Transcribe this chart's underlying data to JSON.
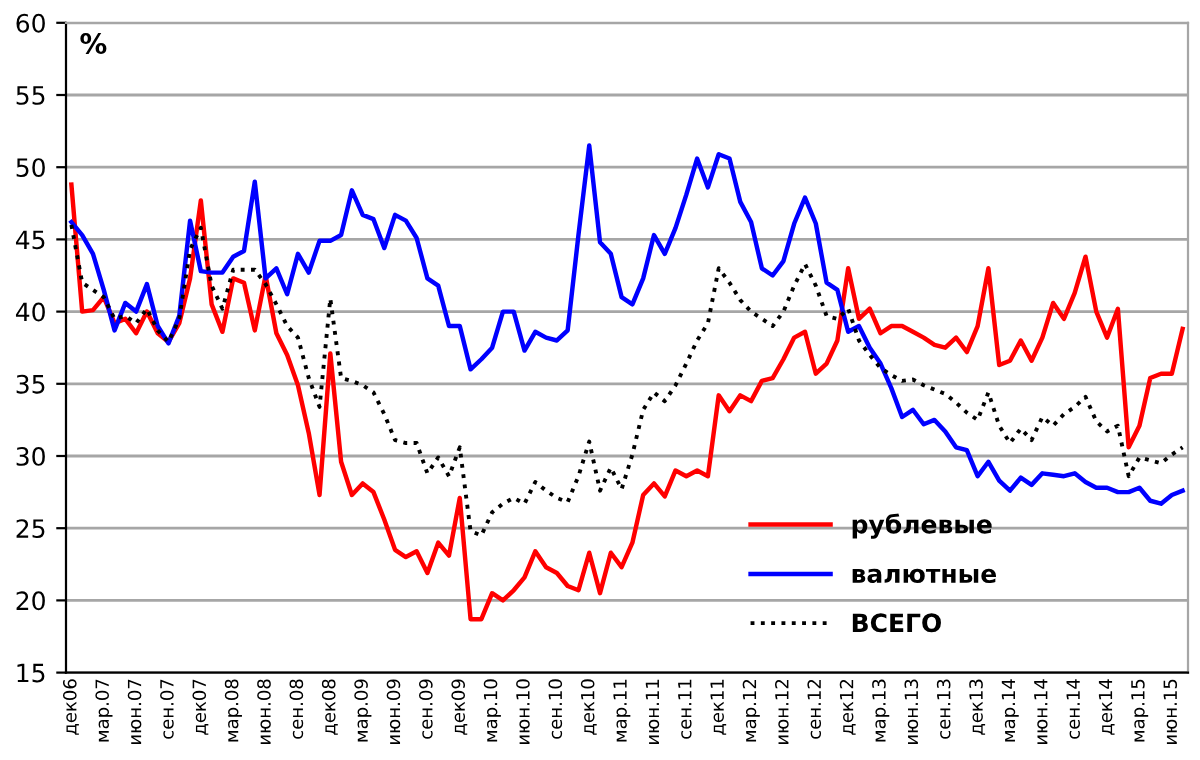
{
  "chart_data": {
    "type": "line",
    "ylabel": "%",
    "categories": [
      "дек06",
      null,
      null,
      "мар.07",
      null,
      null,
      "июн.07",
      null,
      null,
      "сен.07",
      null,
      null,
      "дек07",
      null,
      null,
      "мар.08",
      null,
      null,
      "июн.08",
      null,
      null,
      "сен.08",
      null,
      null,
      "дек08",
      null,
      null,
      "мар.09",
      null,
      null,
      "июн.09",
      null,
      null,
      "сен.09",
      null,
      null,
      "дек09",
      null,
      null,
      "мар.10",
      null,
      null,
      "июн.10",
      null,
      null,
      "сен.10",
      null,
      null,
      "дек10",
      null,
      null,
      "мар.11",
      null,
      null,
      "июн.11",
      null,
      null,
      "сен.11",
      null,
      null,
      "дек11",
      null,
      null,
      "мар.12",
      null,
      null,
      "июн.12",
      null,
      null,
      "сен.12",
      null,
      null,
      "дек12",
      null,
      null,
      "мар.13",
      null,
      null,
      "июн.13",
      null,
      null,
      "сен.13",
      null,
      null,
      "дек13",
      null,
      null,
      "мар.14",
      null,
      null,
      "июн.14",
      null,
      null,
      "сен.14",
      null,
      null,
      "дек14",
      null,
      null,
      "мар.15",
      null,
      null,
      "июн.15",
      null
    ],
    "series": [
      {
        "name": "рублевые",
        "color": "#ff0000",
        "line_style": "solid",
        "values": [
          48.8,
          40.0,
          40.1,
          41.0,
          39.2,
          39.5,
          38.5,
          40.0,
          38.5,
          37.9,
          39.2,
          42.3,
          47.7,
          40.5,
          38.6,
          42.3,
          42.0,
          38.7,
          42.5,
          38.5,
          37.0,
          34.9,
          31.6,
          27.3,
          37.1,
          29.6,
          27.3,
          28.1,
          27.5,
          25.6,
          23.5,
          23.0,
          23.4,
          21.9,
          24.0,
          23.1,
          27.1,
          18.7,
          18.7,
          20.5,
          20.0,
          20.7,
          21.6,
          23.4,
          22.3,
          21.9,
          21.0,
          20.7,
          23.3,
          20.5,
          23.3,
          22.3,
          24.0,
          27.3,
          28.1,
          27.2,
          29.0,
          28.6,
          29.0,
          28.6,
          34.2,
          33.1,
          34.2,
          33.8,
          35.2,
          35.4,
          36.7,
          38.2,
          38.6,
          35.7,
          36.4,
          38.0,
          43.0,
          39.5,
          40.2,
          38.5,
          39.0,
          39.0,
          38.6,
          38.2,
          37.7,
          37.5,
          38.2,
          37.2,
          39.0,
          43.0,
          36.3,
          36.6,
          38.0,
          36.6,
          38.2,
          40.6,
          39.5,
          41.3,
          43.8,
          40.0,
          38.2,
          40.2,
          30.6,
          32.1,
          35.4,
          35.7,
          35.7,
          38.8
        ]
      },
      {
        "name": "валютные",
        "color": "#0000ff",
        "line_style": "solid",
        "values": [
          46.2,
          45.3,
          44.0,
          41.5,
          38.7,
          40.6,
          40.0,
          41.9,
          39.0,
          37.8,
          39.7,
          46.3,
          42.8,
          42.7,
          42.7,
          43.8,
          44.2,
          49.0,
          42.3,
          43.0,
          41.2,
          44.0,
          42.7,
          44.9,
          44.9,
          45.3,
          48.4,
          46.7,
          46.4,
          44.4,
          46.7,
          46.3,
          45.1,
          42.3,
          41.8,
          39.0,
          39.0,
          36.0,
          36.7,
          37.5,
          40.0,
          40.0,
          37.3,
          38.6,
          38.2,
          38.0,
          38.7,
          45.3,
          51.5,
          44.8,
          44.0,
          41.0,
          40.5,
          42.3,
          45.3,
          44.0,
          45.8,
          48.1,
          50.6,
          48.6,
          50.9,
          50.6,
          47.6,
          46.2,
          43.0,
          42.5,
          43.5,
          46.1,
          47.9,
          46.1,
          42.0,
          41.5,
          38.6,
          39.0,
          37.5,
          36.4,
          34.7,
          32.7,
          33.2,
          32.2,
          32.5,
          31.7,
          30.6,
          30.4,
          28.6,
          29.6,
          28.3,
          27.6,
          28.5,
          28.0,
          28.8,
          28.7,
          28.6,
          28.8,
          28.2,
          27.8,
          27.8,
          27.5,
          27.5,
          27.8,
          26.9,
          26.7,
          27.3,
          27.6
        ]
      },
      {
        "name": "ВСЕГО",
        "color": "#000000",
        "line_style": "dotted",
        "values": [
          46.0,
          42.0,
          41.5,
          41.0,
          39.5,
          39.7,
          39.2,
          40.2,
          38.7,
          37.9,
          39.5,
          44.3,
          45.8,
          41.8,
          40.2,
          42.9,
          42.9,
          42.9,
          41.9,
          40.5,
          39.0,
          38.2,
          35.4,
          33.4,
          40.9,
          35.4,
          35.2,
          34.9,
          34.4,
          32.9,
          31.1,
          30.9,
          30.9,
          28.8,
          29.9,
          28.6,
          30.6,
          24.8,
          24.5,
          26.1,
          26.7,
          27.1,
          26.7,
          28.2,
          27.6,
          27.1,
          26.8,
          28.6,
          31.0,
          27.6,
          29.2,
          27.7,
          30.1,
          33.2,
          34.4,
          33.8,
          34.9,
          36.4,
          38.0,
          39.2,
          43.0,
          42.0,
          40.8,
          40.0,
          39.5,
          39.0,
          40.0,
          41.8,
          43.3,
          41.8,
          39.7,
          39.5,
          40.2,
          38.0,
          37.0,
          36.1,
          35.6,
          35.2,
          35.3,
          34.9,
          34.6,
          34.3,
          33.7,
          33.0,
          32.5,
          34.4,
          32.1,
          30.9,
          31.9,
          31.1,
          32.7,
          32.1,
          32.9,
          33.4,
          34.1,
          32.4,
          31.7,
          32.1,
          28.6,
          29.9,
          29.7,
          29.5,
          30.1,
          30.6
        ]
      }
    ],
    "ylim": [
      15,
      60
    ],
    "yticks": [
      15,
      20,
      25,
      30,
      35,
      40,
      45,
      50,
      55,
      60
    ],
    "grid": "y",
    "legend": "bottom right",
    "marker": "none"
  }
}
